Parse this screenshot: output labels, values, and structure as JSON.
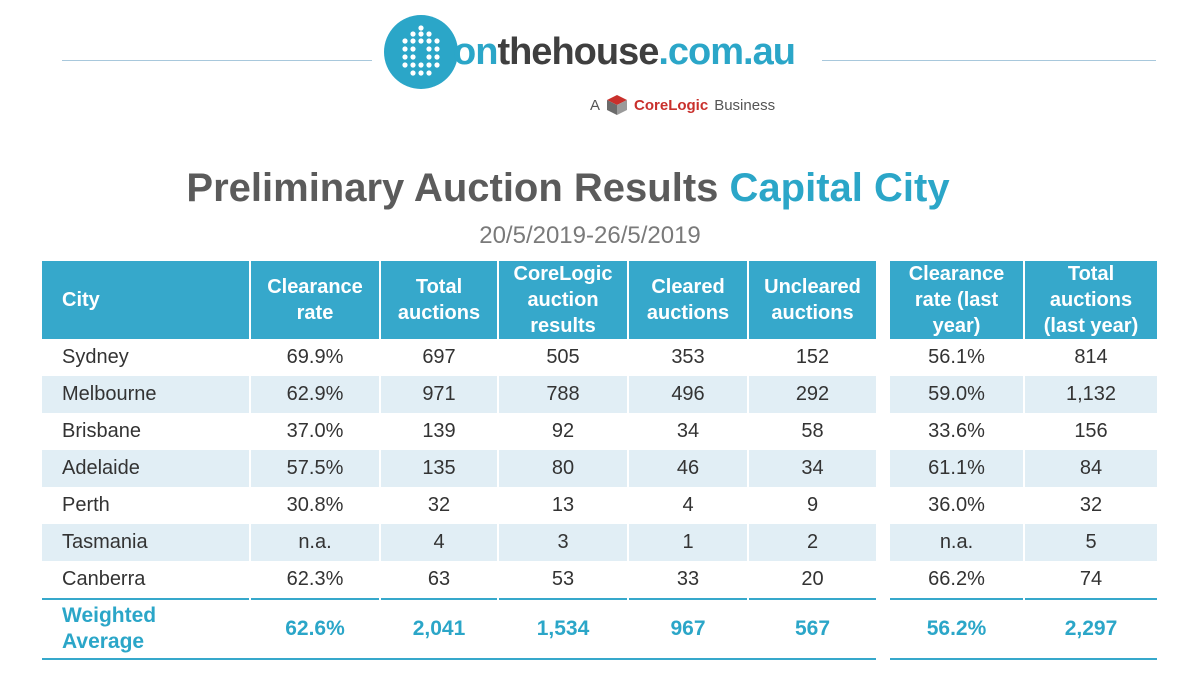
{
  "logo": {
    "brand_on": "on",
    "brand_thehouse": "thehouse",
    "brand_tld": ".com.au",
    "tagline_prefix": "A",
    "tagline_brand": "CoreLogic",
    "tagline_suffix": "Business",
    "colors": {
      "brand": "#2ba6c8",
      "dark": "#3f3f3f",
      "corelogic_red": "#c9302c"
    }
  },
  "title": {
    "main": "Preliminary Auction Results",
    "accent": "Capital City"
  },
  "date_range": "20/5/2019-26/5/2019",
  "table": {
    "headers": [
      "City",
      "Clearance rate",
      "Total auctions",
      "CoreLogic auction results",
      "Cleared auctions",
      "Uncleared auctions"
    ],
    "rows": [
      [
        "Sydney",
        "69.9%",
        "697",
        "505",
        "353",
        "152"
      ],
      [
        "Melbourne",
        "62.9%",
        "971",
        "788",
        "496",
        "292"
      ],
      [
        "Brisbane",
        "37.0%",
        "139",
        "92",
        "34",
        "58"
      ],
      [
        "Adelaide",
        "57.5%",
        "135",
        "80",
        "46",
        "34"
      ],
      [
        "Perth",
        "30.8%",
        "32",
        "13",
        "4",
        "9"
      ],
      [
        "Tasmania",
        "n.a.",
        "4",
        "3",
        "1",
        "2"
      ],
      [
        "Canberra",
        "62.3%",
        "63",
        "53",
        "33",
        "20"
      ]
    ],
    "average": [
      "Weighted Average",
      "62.6%",
      "2,041",
      "1,534",
      "967",
      "567"
    ]
  },
  "last_year_table": {
    "headers": [
      "Clearance rate (last year)",
      "Total auctions (last year)"
    ],
    "rows": [
      [
        "56.1%",
        "814"
      ],
      [
        "59.0%",
        "1,132"
      ],
      [
        "33.6%",
        "156"
      ],
      [
        "61.1%",
        "84"
      ],
      [
        "36.0%",
        "32"
      ],
      [
        "n.a.",
        "5"
      ],
      [
        "66.2%",
        "74"
      ]
    ],
    "average": [
      "56.2%",
      "2,297"
    ]
  },
  "colors": {
    "header_bg": "#36a8cb",
    "row_shade": "#e1eef5",
    "accent_text": "#2ba6c8"
  }
}
